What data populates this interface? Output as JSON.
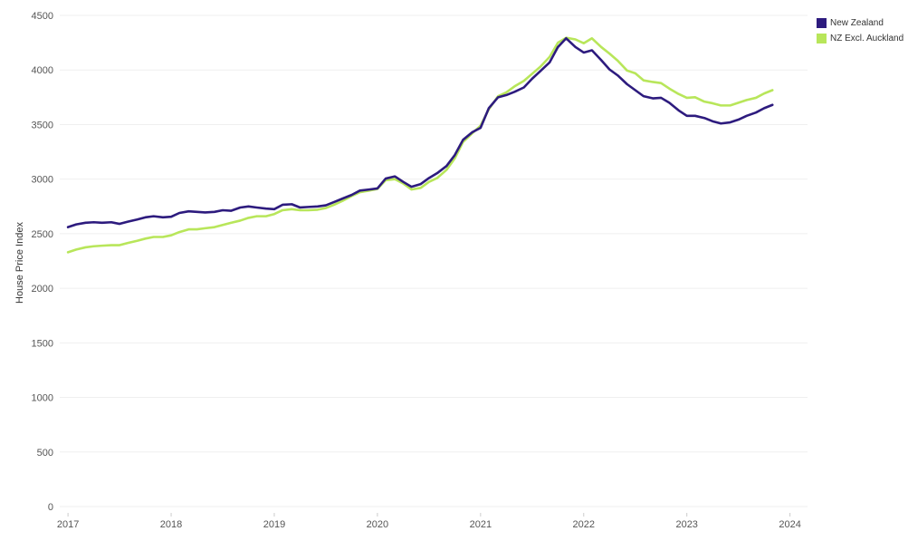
{
  "chart_data": {
    "type": "line",
    "xlabel": "",
    "ylabel": "House Price Index",
    "ylim": [
      0,
      4500
    ],
    "xlim": [
      2016.92,
      2024.17
    ],
    "yticks": [
      0,
      500,
      1000,
      1500,
      2000,
      2500,
      3000,
      3500,
      4000,
      4500
    ],
    "xticks": [
      "2017",
      "2018",
      "2019",
      "2020",
      "2021",
      "2022",
      "2023",
      "2024"
    ],
    "grid": "horizontal",
    "legend_position": "top-right",
    "series": [
      {
        "name": "New Zealand",
        "color": "#2d1b7e",
        "x": [
          2017.0,
          2017.08,
          2017.17,
          2017.25,
          2017.33,
          2017.42,
          2017.5,
          2017.58,
          2017.67,
          2017.75,
          2017.83,
          2017.92,
          2018.0,
          2018.08,
          2018.17,
          2018.25,
          2018.33,
          2018.42,
          2018.5,
          2018.58,
          2018.67,
          2018.75,
          2018.83,
          2018.92,
          2019.0,
          2019.08,
          2019.17,
          2019.25,
          2019.33,
          2019.42,
          2019.5,
          2019.58,
          2019.67,
          2019.75,
          2019.83,
          2019.92,
          2020.0,
          2020.08,
          2020.17,
          2020.25,
          2020.33,
          2020.42,
          2020.5,
          2020.58,
          2020.67,
          2020.75,
          2020.83,
          2020.92,
          2021.0,
          2021.08,
          2021.17,
          2021.25,
          2021.33,
          2021.42,
          2021.5,
          2021.58,
          2021.67,
          2021.75,
          2021.83,
          2021.92,
          2022.0,
          2022.08,
          2022.17,
          2022.25,
          2022.33,
          2022.42,
          2022.5,
          2022.58,
          2022.67,
          2022.75,
          2022.83,
          2022.92,
          2023.0,
          2023.08,
          2023.17,
          2023.25,
          2023.33,
          2023.42,
          2023.5,
          2023.58,
          2023.67,
          2023.75,
          2023.83
        ],
        "values": [
          2560,
          2585,
          2600,
          2605,
          2600,
          2605,
          2590,
          2610,
          2630,
          2650,
          2660,
          2650,
          2655,
          2690,
          2705,
          2700,
          2695,
          2700,
          2715,
          2710,
          2740,
          2750,
          2740,
          2730,
          2725,
          2765,
          2770,
          2740,
          2745,
          2750,
          2760,
          2790,
          2825,
          2855,
          2895,
          2905,
          2915,
          3005,
          3025,
          2975,
          2930,
          2955,
          3010,
          3055,
          3120,
          3220,
          3360,
          3430,
          3470,
          3650,
          3750,
          3770,
          3800,
          3840,
          3920,
          3990,
          4070,
          4210,
          4290,
          4210,
          4160,
          4180,
          4090,
          4005,
          3950,
          3870,
          3815,
          3760,
          3740,
          3745,
          3700,
          3630,
          3580,
          3580,
          3560,
          3530,
          3510,
          3520,
          3545,
          3580,
          3610,
          3650,
          3680
        ]
      },
      {
        "name": "NZ Excl. Auckland",
        "color": "#b8e65a",
        "x": [
          2017.0,
          2017.08,
          2017.17,
          2017.25,
          2017.33,
          2017.42,
          2017.5,
          2017.58,
          2017.67,
          2017.75,
          2017.83,
          2017.92,
          2018.0,
          2018.08,
          2018.17,
          2018.25,
          2018.33,
          2018.42,
          2018.5,
          2018.58,
          2018.67,
          2018.75,
          2018.83,
          2018.92,
          2019.0,
          2019.08,
          2019.17,
          2019.25,
          2019.33,
          2019.42,
          2019.5,
          2019.58,
          2019.67,
          2019.75,
          2019.83,
          2019.92,
          2020.0,
          2020.08,
          2020.17,
          2020.25,
          2020.33,
          2020.42,
          2020.5,
          2020.58,
          2020.67,
          2020.75,
          2020.83,
          2020.92,
          2021.0,
          2021.08,
          2021.17,
          2021.25,
          2021.33,
          2021.42,
          2021.5,
          2021.58,
          2021.67,
          2021.75,
          2021.83,
          2021.92,
          2022.0,
          2022.08,
          2022.17,
          2022.25,
          2022.33,
          2022.42,
          2022.5,
          2022.58,
          2022.67,
          2022.75,
          2022.83,
          2022.92,
          2023.0,
          2023.08,
          2023.17,
          2023.25,
          2023.33,
          2023.42,
          2023.5,
          2023.58,
          2023.67,
          2023.75,
          2023.83
        ],
        "values": [
          2330,
          2355,
          2375,
          2385,
          2390,
          2395,
          2395,
          2415,
          2435,
          2455,
          2470,
          2470,
          2485,
          2515,
          2540,
          2540,
          2550,
          2560,
          2580,
          2600,
          2620,
          2645,
          2660,
          2660,
          2680,
          2715,
          2725,
          2715,
          2715,
          2720,
          2735,
          2765,
          2805,
          2845,
          2880,
          2895,
          2910,
          2990,
          3000,
          2960,
          2905,
          2920,
          2975,
          3010,
          3085,
          3190,
          3340,
          3420,
          3490,
          3640,
          3760,
          3795,
          3850,
          3900,
          3965,
          4030,
          4120,
          4250,
          4295,
          4280,
          4245,
          4290,
          4210,
          4150,
          4085,
          3995,
          3970,
          3905,
          3890,
          3880,
          3830,
          3780,
          3745,
          3750,
          3710,
          3695,
          3675,
          3675,
          3700,
          3725,
          3745,
          3785,
          3815
        ]
      }
    ]
  }
}
